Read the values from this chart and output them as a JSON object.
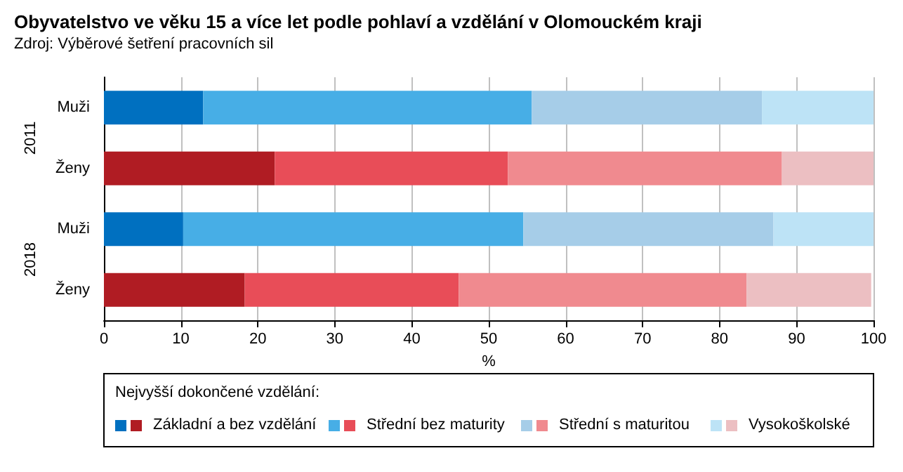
{
  "chart_data": {
    "type": "bar",
    "orientation": "horizontal",
    "stacked": true,
    "title": "Obyvatelstvo ve věku 15 a více let podle pohlaví a vzdělání v Olomouckém kraji",
    "subtitle": "Zdroj: Výběrové šetření pracovních sil",
    "xlabel": "%",
    "legend_title": "Nejvyšší dokončené vzdělání:",
    "categories": [
      "Muži",
      "Ženy",
      "Muži",
      "Ženy"
    ],
    "annotations": [
      "2011",
      "2018"
    ],
    "series": [
      {
        "name": "Základní a bez vzdělání",
        "colors": [
          "#0070c0",
          "#b01c23",
          "#0070c0",
          "#b01c23"
        ],
        "values": [
          12.9,
          22.2,
          10.3,
          18.3
        ]
      },
      {
        "name": "Střední bez maturity",
        "colors": [
          "#47aee6",
          "#e84d58",
          "#47aee6",
          "#e84d58"
        ],
        "values": [
          42.7,
          30.3,
          44.2,
          27.8
        ]
      },
      {
        "name": "Střední s maturitou",
        "colors": [
          "#a6cde8",
          "#f08a8f",
          "#a6cde8",
          "#f08a8f"
        ],
        "values": [
          29.9,
          35.6,
          32.5,
          37.4
        ]
      },
      {
        "name": "Vysokoškolské",
        "colors": [
          "#bde3f6",
          "#ecbfc2",
          "#bde3f6",
          "#ecbfc2"
        ],
        "values": [
          14.5,
          11.9,
          13.0,
          16.2
        ]
      }
    ],
    "xlim": [
      0,
      100
    ],
    "xticks": [
      0,
      10,
      20,
      30,
      40,
      50,
      60,
      70,
      80,
      90,
      100
    ],
    "grid": "x",
    "legend": "bottom"
  }
}
